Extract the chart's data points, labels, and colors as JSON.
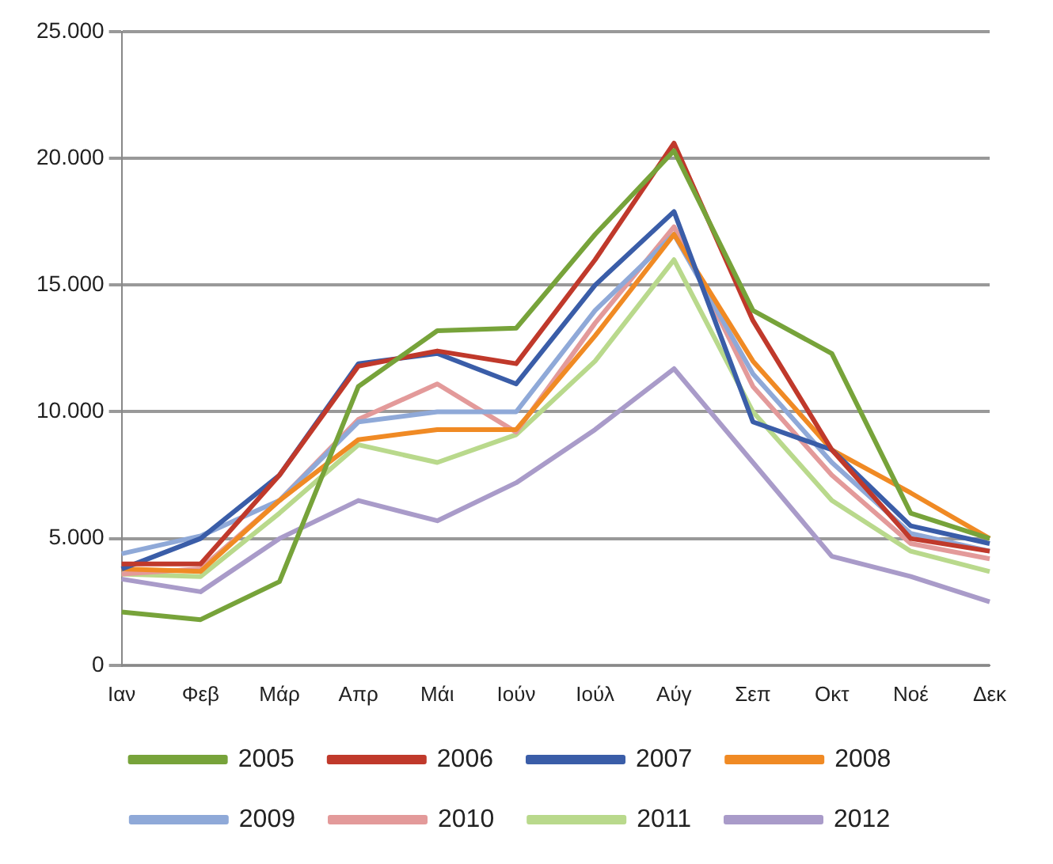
{
  "chart_data": {
    "type": "line",
    "categories": [
      "Ιαν",
      "Φεβ",
      "Μάρ",
      "Απρ",
      "Μάι",
      "Ιούν",
      "Ιούλ",
      "Αύγ",
      "Σεπ",
      "Οκτ",
      "Νοέ",
      "Δεκ"
    ],
    "series": [
      {
        "name": "2005",
        "color": "#77a33a",
        "values": [
          2100,
          1800,
          3300,
          11000,
          13200,
          13300,
          17000,
          20300,
          14000,
          12300,
          6000,
          5000
        ]
      },
      {
        "name": "2006",
        "color": "#c0392b",
        "values": [
          4000,
          4000,
          7500,
          11800,
          12400,
          11900,
          16000,
          20600,
          13600,
          8500,
          5000,
          4500
        ]
      },
      {
        "name": "2007",
        "color": "#3a5da8",
        "values": [
          3800,
          5000,
          7500,
          11900,
          12300,
          11100,
          15000,
          17900,
          9600,
          8500,
          5500,
          4800
        ]
      },
      {
        "name": "2008",
        "color": "#f08a24",
        "values": [
          3800,
          3700,
          6500,
          8900,
          9300,
          9300,
          13000,
          17000,
          12000,
          8500,
          6800,
          5000
        ]
      },
      {
        "name": "2009",
        "color": "#8fa9d8",
        "values": [
          4400,
          5100,
          6500,
          9600,
          10000,
          10000,
          14000,
          17000,
          11500,
          8000,
          5200,
          4500
        ]
      },
      {
        "name": "2010",
        "color": "#e39a9a",
        "values": [
          3600,
          3800,
          6500,
          9700,
          11100,
          9200,
          13500,
          17300,
          11000,
          7500,
          4800,
          4200
        ]
      },
      {
        "name": "2011",
        "color": "#b9d98c",
        "values": [
          3600,
          3500,
          6000,
          8700,
          8000,
          9100,
          12000,
          16000,
          10000,
          6500,
          4500,
          3700
        ]
      },
      {
        "name": "2012",
        "color": "#a99bc9",
        "values": [
          3400,
          2900,
          5000,
          6500,
          5700,
          7200,
          9300,
          11700,
          8000,
          4300,
          3500,
          2500
        ]
      }
    ],
    "ylim": [
      0,
      25000
    ],
    "yticks": [
      0,
      {
        "value": 5000,
        "label": "5.000"
      },
      {
        "value": 10000,
        "label": "10.000"
      },
      {
        "value": 15000,
        "label": "15.000"
      },
      {
        "value": 20000,
        "label": "20.000"
      },
      {
        "value": 25000,
        "label": "25.000"
      }
    ],
    "grid": "y",
    "legend": "bottom",
    "marker": "none",
    "line_style": "solid"
  }
}
